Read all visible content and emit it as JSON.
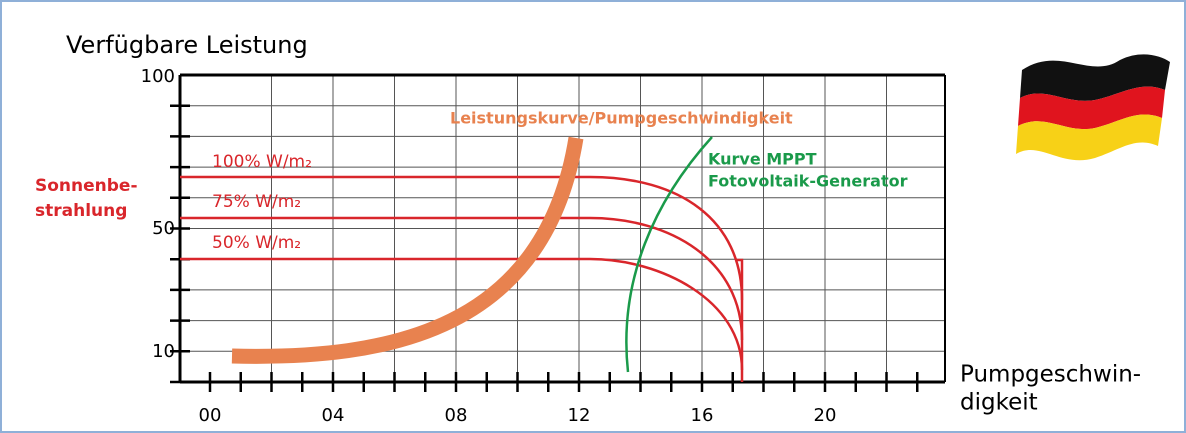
{
  "header": {
    "title": "Verfügbare Leistung"
  },
  "y_axis": {
    "ticks": [
      "100",
      "50",
      "10"
    ]
  },
  "x_axis": {
    "title_lines": [
      "Pumpgeschwin-",
      "digkeit"
    ],
    "ticks": [
      "00",
      "04",
      "08",
      "12",
      "16",
      "20"
    ]
  },
  "irradiance": {
    "title_lines": [
      "Sonnenbe-",
      "strahlung"
    ],
    "levels": [
      "100% W/m₂",
      "75% W/m₂",
      "50% W/m₂"
    ]
  },
  "curves": {
    "pump": "Leistungskurve/Pumpgeschwindigkeit",
    "mppt_lines": [
      "Kurve MPPT",
      "Fotovoltaik-Generator"
    ]
  }
}
